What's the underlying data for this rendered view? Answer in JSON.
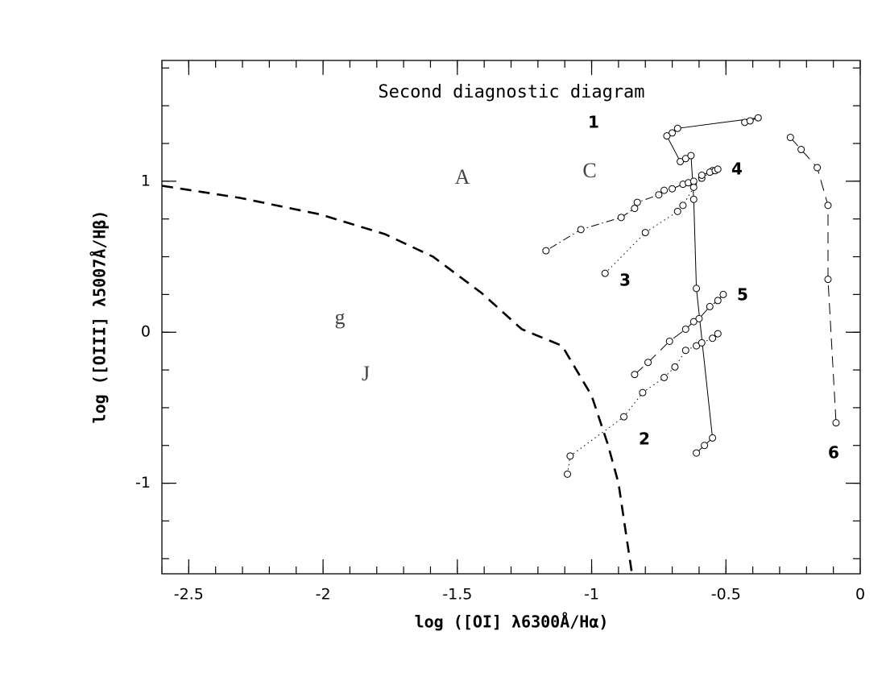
{
  "chart_data": {
    "type": "scatter",
    "title": "Second diagnostic diagram",
    "xlabel": "log ([OI] λ6300Å/Hα)",
    "ylabel": "log ([OIII] λ5007Å/Hβ)",
    "xlim": [
      -2.6,
      0
    ],
    "ylim": [
      -1.6,
      1.8
    ],
    "xticks": [
      -2.5,
      -2,
      -1.5,
      -1,
      -0.5,
      0
    ],
    "yticks": [
      -1,
      0,
      1
    ],
    "color": "#000000",
    "series": [
      {
        "name": "1",
        "style": "solid",
        "x": [
          -0.43,
          -0.41,
          -0.38,
          -0.68,
          -0.7,
          -0.72,
          -0.67,
          -0.65,
          -0.63,
          -0.62,
          -0.61,
          -0.55,
          -0.58,
          -0.61
        ],
        "values": [
          1.39,
          1.4,
          1.42,
          1.35,
          1.32,
          1.3,
          1.13,
          1.15,
          1.17,
          0.88,
          0.29,
          -0.7,
          -0.75,
          -0.8
        ]
      },
      {
        "name": "2",
        "style": "dotted",
        "x": [
          -1.09,
          -1.08,
          -0.88,
          -0.81,
          -0.73,
          -0.69,
          -0.65,
          -0.61,
          -0.59,
          -0.55,
          -0.53
        ],
        "values": [
          -0.94,
          -0.82,
          -0.56,
          -0.4,
          -0.3,
          -0.23,
          -0.12,
          -0.09,
          -0.07,
          -0.04,
          -0.01
        ]
      },
      {
        "name": "3",
        "style": "dotted",
        "x": [
          -0.95,
          -0.8,
          -0.68,
          -0.66,
          -0.62,
          -0.59,
          -0.55
        ],
        "values": [
          0.39,
          0.66,
          0.8,
          0.84,
          0.96,
          1.02,
          1.07
        ]
      },
      {
        "name": "4",
        "style": "dotdash",
        "x": [
          -1.17,
          -1.04,
          -0.89,
          -0.84,
          -0.83,
          -0.75,
          -0.73,
          -0.7,
          -0.66,
          -0.64,
          -0.62,
          -0.59,
          -0.56,
          -0.54,
          -0.53
        ],
        "values": [
          0.54,
          0.68,
          0.76,
          0.82,
          0.86,
          0.91,
          0.94,
          0.95,
          0.98,
          0.99,
          1.0,
          1.04,
          1.06,
          1.07,
          1.08
        ]
      },
      {
        "name": "5",
        "style": "dashed",
        "x": [
          -0.84,
          -0.79,
          -0.71,
          -0.65,
          -0.62,
          -0.6,
          -0.56,
          -0.53,
          -0.51
        ],
        "values": [
          -0.28,
          -0.2,
          -0.06,
          0.02,
          0.07,
          0.09,
          0.17,
          0.21,
          0.25
        ]
      },
      {
        "name": "6",
        "style": "dashed",
        "x": [
          -0.26,
          -0.22,
          -0.16,
          -0.12,
          -0.12,
          -0.09
        ],
        "values": [
          1.29,
          1.21,
          1.09,
          0.84,
          0.35,
          -0.6
        ]
      }
    ],
    "boundary": {
      "x": [
        -2.6,
        -2.31,
        -2.01,
        -1.77,
        -1.59,
        -1.41,
        -1.26,
        -1.11,
        -1.0,
        -0.94,
        -0.9,
        -0.85
      ],
      "values": [
        0.97,
        0.89,
        0.78,
        0.65,
        0.5,
        0.26,
        0.02,
        -0.09,
        -0.42,
        -0.74,
        -1.0,
        -1.6
      ]
    },
    "annotations": [
      "A",
      "C",
      "g",
      "J"
    ]
  }
}
